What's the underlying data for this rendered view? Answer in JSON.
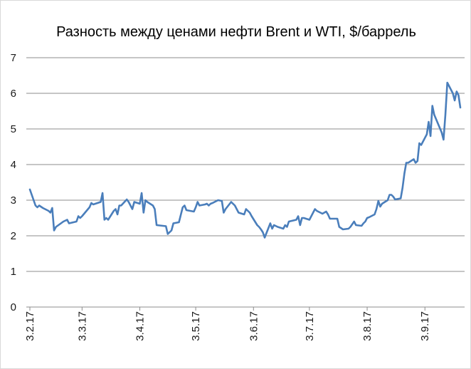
{
  "chart_data": {
    "type": "line",
    "title": "Разность между ценами нефти Brent и WTI, $/баррель",
    "xlabel": "",
    "ylabel": "",
    "ylim": [
      0,
      7
    ],
    "yticks": [
      "0",
      "1",
      "2",
      "3",
      "4",
      "5",
      "6",
      "7"
    ],
    "xticks": [
      "3.2.17",
      "3.3.17",
      "3.4.17",
      "3.5.17",
      "3.6.17",
      "3.7.17",
      "3.8.17",
      "3.9.17"
    ],
    "grid": true,
    "legend": "none",
    "series": [
      {
        "color": "#4a7ebb",
        "points": [
          [
            "2017-02-03",
            3.3
          ],
          [
            "2017-02-06",
            2.85
          ],
          [
            "2017-02-07",
            2.8
          ],
          [
            "2017-02-08",
            2.85
          ],
          [
            "2017-02-10",
            2.78
          ],
          [
            "2017-02-13",
            2.7
          ],
          [
            "2017-02-14",
            2.65
          ],
          [
            "2017-02-15",
            2.78
          ],
          [
            "2017-02-16",
            2.15
          ],
          [
            "2017-02-17",
            2.25
          ],
          [
            "2017-02-21",
            2.4
          ],
          [
            "2017-02-23",
            2.45
          ],
          [
            "2017-02-24",
            2.35
          ],
          [
            "2017-02-28",
            2.4
          ],
          [
            "2017-03-01",
            2.55
          ],
          [
            "2017-03-02",
            2.5
          ],
          [
            "2017-03-03",
            2.55
          ],
          [
            "2017-03-07",
            2.8
          ],
          [
            "2017-03-08",
            2.92
          ],
          [
            "2017-03-09",
            2.88
          ],
          [
            "2017-03-13",
            2.95
          ],
          [
            "2017-03-14",
            3.2
          ],
          [
            "2017-03-15",
            2.45
          ],
          [
            "2017-03-16",
            2.5
          ],
          [
            "2017-03-17",
            2.45
          ],
          [
            "2017-03-20",
            2.7
          ],
          [
            "2017-03-21",
            2.75
          ],
          [
            "2017-03-22",
            2.6
          ],
          [
            "2017-03-23",
            2.85
          ],
          [
            "2017-03-24",
            2.85
          ],
          [
            "2017-03-27",
            3.02
          ],
          [
            "2017-03-28",
            2.95
          ],
          [
            "2017-03-30",
            2.75
          ],
          [
            "2017-03-31",
            2.95
          ],
          [
            "2017-04-03",
            2.9
          ],
          [
            "2017-04-04",
            3.2
          ],
          [
            "2017-04-05",
            2.65
          ],
          [
            "2017-04-06",
            3.0
          ],
          [
            "2017-04-07",
            2.95
          ],
          [
            "2017-04-10",
            2.85
          ],
          [
            "2017-04-11",
            2.75
          ],
          [
            "2017-04-12",
            2.3
          ],
          [
            "2017-04-17",
            2.27
          ],
          [
            "2017-04-18",
            2.05
          ],
          [
            "2017-04-20",
            2.15
          ],
          [
            "2017-04-21",
            2.35
          ],
          [
            "2017-04-24",
            2.38
          ],
          [
            "2017-04-26",
            2.8
          ],
          [
            "2017-04-27",
            2.85
          ],
          [
            "2017-04-28",
            2.72
          ],
          [
            "2017-05-02",
            2.68
          ],
          [
            "2017-05-03",
            2.8
          ],
          [
            "2017-05-04",
            2.95
          ],
          [
            "2017-05-05",
            2.85
          ],
          [
            "2017-05-08",
            2.88
          ],
          [
            "2017-05-09",
            2.9
          ],
          [
            "2017-05-10",
            2.85
          ],
          [
            "2017-05-11",
            2.9
          ],
          [
            "2017-05-12",
            2.92
          ],
          [
            "2017-05-15",
            3.0
          ],
          [
            "2017-05-17",
            2.98
          ],
          [
            "2017-05-18",
            2.65
          ],
          [
            "2017-05-19",
            2.75
          ],
          [
            "2017-05-22",
            2.95
          ],
          [
            "2017-05-24",
            2.85
          ],
          [
            "2017-05-25",
            2.75
          ],
          [
            "2017-05-26",
            2.65
          ],
          [
            "2017-05-29",
            2.6
          ],
          [
            "2017-05-30",
            2.75
          ],
          [
            "2017-06-01",
            2.65
          ],
          [
            "2017-06-02",
            2.55
          ],
          [
            "2017-06-05",
            2.3
          ],
          [
            "2017-06-06",
            2.25
          ],
          [
            "2017-06-07",
            2.18
          ],
          [
            "2017-06-08",
            2.1
          ],
          [
            "2017-06-09",
            1.95
          ],
          [
            "2017-06-12",
            2.35
          ],
          [
            "2017-06-13",
            2.2
          ],
          [
            "2017-06-14",
            2.3
          ],
          [
            "2017-06-16",
            2.25
          ],
          [
            "2017-06-19",
            2.2
          ],
          [
            "2017-06-20",
            2.3
          ],
          [
            "2017-06-21",
            2.25
          ],
          [
            "2017-06-22",
            2.4
          ],
          [
            "2017-06-26",
            2.45
          ],
          [
            "2017-06-27",
            2.55
          ],
          [
            "2017-06-28",
            2.3
          ],
          [
            "2017-06-29",
            2.5
          ],
          [
            "2017-06-30",
            2.5
          ],
          [
            "2017-07-03",
            2.45
          ],
          [
            "2017-07-05",
            2.65
          ],
          [
            "2017-07-06",
            2.75
          ],
          [
            "2017-07-07",
            2.7
          ],
          [
            "2017-07-10",
            2.62
          ],
          [
            "2017-07-12",
            2.68
          ],
          [
            "2017-07-13",
            2.6
          ],
          [
            "2017-07-14",
            2.48
          ],
          [
            "2017-07-18",
            2.48
          ],
          [
            "2017-07-19",
            2.25
          ],
          [
            "2017-07-21",
            2.18
          ],
          [
            "2017-07-24",
            2.2
          ],
          [
            "2017-07-25",
            2.25
          ],
          [
            "2017-07-27",
            2.4
          ],
          [
            "2017-07-28",
            2.3
          ],
          [
            "2017-07-31",
            2.28
          ],
          [
            "2017-08-01",
            2.35
          ],
          [
            "2017-08-02",
            2.4
          ],
          [
            "2017-08-03",
            2.5
          ],
          [
            "2017-08-04",
            2.52
          ],
          [
            "2017-08-07",
            2.6
          ],
          [
            "2017-08-08",
            2.75
          ],
          [
            "2017-08-09",
            2.98
          ],
          [
            "2017-08-10",
            2.82
          ],
          [
            "2017-08-11",
            2.9
          ],
          [
            "2017-08-14",
            3.0
          ],
          [
            "2017-08-15",
            3.15
          ],
          [
            "2017-08-16",
            3.15
          ],
          [
            "2017-08-17",
            3.1
          ],
          [
            "2017-08-18",
            3.02
          ],
          [
            "2017-08-21",
            3.05
          ],
          [
            "2017-08-22",
            3.35
          ],
          [
            "2017-08-23",
            3.75
          ],
          [
            "2017-08-24",
            4.05
          ],
          [
            "2017-08-25",
            4.05
          ],
          [
            "2017-08-28",
            4.15
          ],
          [
            "2017-08-29",
            4.05
          ],
          [
            "2017-08-30",
            4.1
          ],
          [
            "2017-08-31",
            4.6
          ],
          [
            "2017-09-01",
            4.55
          ],
          [
            "2017-09-04",
            4.85
          ],
          [
            "2017-09-05",
            5.2
          ],
          [
            "2017-09-06",
            4.8
          ],
          [
            "2017-09-07",
            5.65
          ],
          [
            "2017-09-08",
            5.4
          ],
          [
            "2017-09-12",
            4.9
          ],
          [
            "2017-09-13",
            4.7
          ],
          [
            "2017-09-14",
            5.4
          ],
          [
            "2017-09-15",
            6.3
          ],
          [
            "2017-09-18",
            6.0
          ],
          [
            "2017-09-19",
            5.8
          ],
          [
            "2017-09-20",
            6.05
          ],
          [
            "2017-09-21",
            5.95
          ],
          [
            "2017-09-22",
            5.6
          ]
        ]
      }
    ]
  }
}
